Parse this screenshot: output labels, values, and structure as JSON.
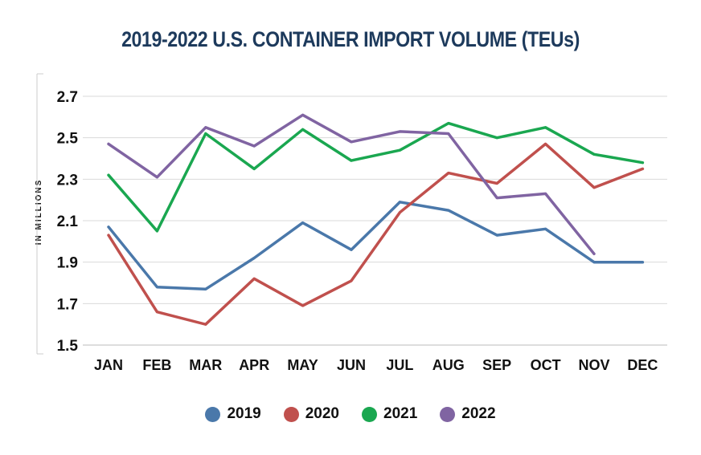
{
  "chart_data": {
    "type": "line",
    "title": "2019-2022 U.S. CONTAINER IMPORT VOLUME (TEUs)",
    "ylabel": "IN MILLIONS",
    "xlabel": "",
    "categories": [
      "JAN",
      "FEB",
      "MAR",
      "APR",
      "MAY",
      "JUN",
      "JUL",
      "AUG",
      "SEP",
      "OCT",
      "NOV",
      "DEC"
    ],
    "yticks": [
      "1.5",
      "1.7",
      "1.9",
      "2.1",
      "2.3",
      "2.5",
      "2.7"
    ],
    "ylim": [
      1.5,
      2.7
    ],
    "grid": true,
    "legend_position": "bottom",
    "series": [
      {
        "name": "2019",
        "color": "#4a78aa",
        "values": [
          2.07,
          1.78,
          1.77,
          1.92,
          2.09,
          1.96,
          2.19,
          2.15,
          2.03,
          2.06,
          1.9,
          1.9
        ]
      },
      {
        "name": "2020",
        "color": "#c0504d",
        "values": [
          2.03,
          1.66,
          1.6,
          1.82,
          1.69,
          1.81,
          2.14,
          2.33,
          2.28,
          2.47,
          2.26,
          2.35
        ]
      },
      {
        "name": "2021",
        "color": "#1aa750",
        "values": [
          2.32,
          2.05,
          2.52,
          2.35,
          2.54,
          2.39,
          2.44,
          2.57,
          2.5,
          2.55,
          2.42,
          2.38
        ]
      },
      {
        "name": "2022",
        "color": "#8064a2",
        "values": [
          2.47,
          2.31,
          2.55,
          2.46,
          2.61,
          2.48,
          2.53,
          2.52,
          2.21,
          2.23,
          1.94,
          null
        ]
      }
    ]
  }
}
